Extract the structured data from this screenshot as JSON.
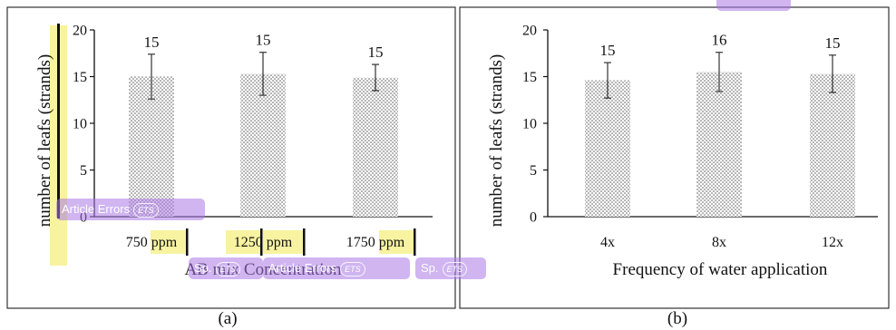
{
  "chart_data": [
    {
      "type": "bar",
      "panel_label": "(a)",
      "xlabel": "AB mix Concentration",
      "ylabel": "number of leafs (strands)",
      "categories": [
        "750 ppm",
        "1250 ppm",
        "1750 ppm"
      ],
      "values": [
        15,
        15.3,
        14.9
      ],
      "error": [
        2.4,
        2.3,
        1.4
      ],
      "data_labels": [
        "15",
        "15",
        "15"
      ],
      "ylim": [
        0,
        20
      ],
      "yticks": [
        "0",
        "5",
        "10",
        "15",
        "20"
      ],
      "grid": false,
      "bar_fill": "dotted gray"
    },
    {
      "type": "bar",
      "panel_label": "(b)",
      "xlabel": "Frequency of water application",
      "ylabel": "number of leafs (strands)",
      "categories": [
        "4x",
        "8x",
        "12x"
      ],
      "values": [
        14.6,
        15.5,
        15.3
      ],
      "error": [
        1.9,
        2.1,
        2.0
      ],
      "data_labels": [
        "15",
        "16",
        "15"
      ],
      "ylim": [
        0,
        20
      ],
      "yticks": [
        "0",
        "5",
        "10",
        "15",
        "20"
      ],
      "grid": false,
      "bar_fill": "dotted gray"
    }
  ],
  "overlays": {
    "tag1": "Article Errors",
    "tag2": "Sp.",
    "tag3": "Article Errors",
    "tag4": "Sp.",
    "tag_badge": "ETS"
  },
  "colors": {
    "highlight_yellow": "#f7f3a0",
    "highlight_purple": "#b98ae6",
    "panel_border": "#333333"
  }
}
